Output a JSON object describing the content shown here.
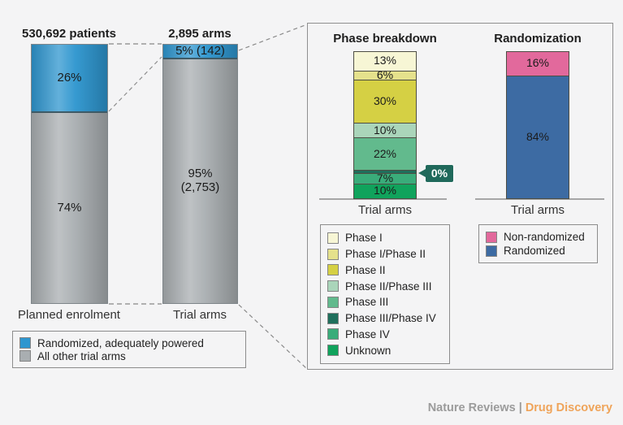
{
  "left_chart": {
    "bar1": {
      "title": "530,692 patients",
      "x_label": "Planned enrolment",
      "segments": [
        {
          "label": "26%",
          "pct": 26,
          "color": "#2e96cf"
        },
        {
          "label": "74%",
          "pct": 74,
          "color": "#a9aeb1"
        }
      ]
    },
    "bar2": {
      "title": "2,895 arms",
      "x_label": "Trial arms",
      "segments": [
        {
          "label": "5% (142)",
          "pct": 5,
          "color": "#2e96cf"
        },
        {
          "label": "95%",
          "label2": "(2,753)",
          "pct": 95,
          "color": "#a9aeb1"
        }
      ]
    },
    "legend": [
      {
        "label": "Randomized, adequately powered",
        "color": "#2e96cf"
      },
      {
        "label": "All other trial arms",
        "color": "#a9aeb1"
      }
    ]
  },
  "panel": {
    "phase": {
      "title": "Phase breakdown",
      "x_label": "Trial arms",
      "callout": "0%",
      "segments": [
        {
          "label": "13%",
          "pct": 13,
          "color": "#f7f6d5"
        },
        {
          "label": "6%",
          "pct": 6,
          "color": "#e5e18c"
        },
        {
          "label": "30%",
          "pct": 30,
          "color": "#d5d044"
        },
        {
          "label": "10%",
          "pct": 10,
          "color": "#aad5ba"
        },
        {
          "label": "22%",
          "pct": 22,
          "color": "#62ba8d"
        },
        {
          "pct": 0,
          "color": "#1f6f5c"
        },
        {
          "label": "7%",
          "pct": 7,
          "color": "#3aac7a"
        },
        {
          "label": "10%",
          "pct": 10,
          "color": "#10a35c"
        }
      ],
      "legend": [
        {
          "label": "Phase I",
          "color": "#f7f6d5"
        },
        {
          "label": "Phase I/Phase II",
          "color": "#e5e18c"
        },
        {
          "label": "Phase II",
          "color": "#d5d044"
        },
        {
          "label": "Phase II/Phase III",
          "color": "#aad5ba"
        },
        {
          "label": "Phase III",
          "color": "#62ba8d"
        },
        {
          "label": "Phase III/Phase IV",
          "color": "#1f6f5c"
        },
        {
          "label": "Phase IV",
          "color": "#3aac7a"
        },
        {
          "label": "Unknown",
          "color": "#10a35c"
        }
      ]
    },
    "randomization": {
      "title": "Randomization",
      "x_label": "Trial arms",
      "segments": [
        {
          "label": "16%",
          "pct": 16,
          "color": "#e2699c"
        },
        {
          "label": "84%",
          "pct": 84,
          "color": "#3d6ba3"
        }
      ],
      "legend": [
        {
          "label": "Non-randomized",
          "color": "#e2699c"
        },
        {
          "label": "Randomized",
          "color": "#3d6ba3"
        }
      ]
    }
  },
  "footer": {
    "brand": "Nature Reviews",
    "sep": "|",
    "publication": "Drug Discovery"
  },
  "chart_data": [
    {
      "type": "bar",
      "stacked": true,
      "unit": "percent",
      "categories": [
        "Planned enrolment",
        "Trial arms"
      ],
      "category_totals": [
        "530,692 patients",
        "2,895 arms"
      ],
      "series": [
        {
          "name": "Randomized, adequately powered",
          "values": [
            26,
            5
          ],
          "counts": [
            null,
            142
          ],
          "color": "#2e96cf"
        },
        {
          "name": "All other trial arms",
          "values": [
            74,
            95
          ],
          "counts": [
            null,
            2753
          ],
          "color": "#a9aeb1"
        }
      ],
      "legend_position": "below",
      "grid": false
    },
    {
      "type": "bar",
      "stacked": true,
      "unit": "percent",
      "title": "Phase breakdown",
      "categories": [
        "Trial arms"
      ],
      "segment_order": "top-to-bottom",
      "series": [
        {
          "name": "Phase I",
          "values": [
            13
          ],
          "color": "#f7f6d5"
        },
        {
          "name": "Phase I/Phase II",
          "values": [
            6
          ],
          "color": "#e5e18c"
        },
        {
          "name": "Phase II",
          "values": [
            30
          ],
          "color": "#d5d044"
        },
        {
          "name": "Phase II/Phase III",
          "values": [
            10
          ],
          "color": "#aad5ba"
        },
        {
          "name": "Phase III",
          "values": [
            22
          ],
          "color": "#62ba8d"
        },
        {
          "name": "Phase III/Phase IV",
          "values": [
            0
          ],
          "color": "#1f6f5c",
          "annotation": "0%"
        },
        {
          "name": "Phase IV",
          "values": [
            7
          ],
          "color": "#3aac7a"
        },
        {
          "name": "Unknown",
          "values": [
            10
          ],
          "color": "#10a35c"
        }
      ],
      "legend_position": "below",
      "grid": false
    },
    {
      "type": "bar",
      "stacked": true,
      "unit": "percent",
      "title": "Randomization",
      "categories": [
        "Trial arms"
      ],
      "segment_order": "top-to-bottom",
      "series": [
        {
          "name": "Non-randomized",
          "values": [
            16
          ],
          "color": "#e2699c"
        },
        {
          "name": "Randomized",
          "values": [
            84
          ],
          "color": "#3d6ba3"
        }
      ],
      "legend_position": "below",
      "grid": false
    }
  ]
}
